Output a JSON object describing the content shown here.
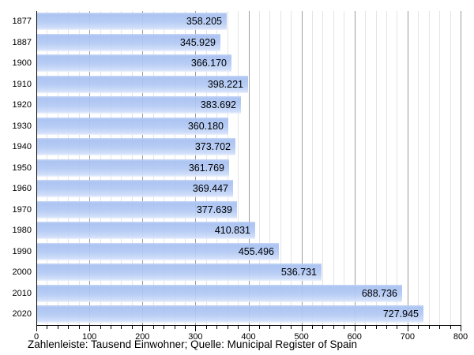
{
  "chart_data": {
    "type": "bar",
    "orientation": "horizontal",
    "categories": [
      "1877",
      "1887",
      "1900",
      "1910",
      "1920",
      "1930",
      "1940",
      "1950",
      "1960",
      "1970",
      "1980",
      "1990",
      "2000",
      "2010",
      "2020"
    ],
    "values": [
      358.205,
      345.929,
      366.17,
      398.221,
      383.692,
      360.18,
      373.702,
      361.769,
      369.447,
      377.639,
      410.831,
      455.496,
      536.731,
      688.736,
      727.945
    ],
    "value_labels": [
      "358.205",
      "345.929",
      "366.170",
      "398.221",
      "383.692",
      "360.180",
      "373.702",
      "361.769",
      "369.447",
      "377.639",
      "410.831",
      "455.496",
      "536.731",
      "688.736",
      "727.945"
    ],
    "title": "",
    "xlabel": "",
    "ylabel": "",
    "xlim": [
      0,
      800
    ],
    "x_major_ticks": [
      0,
      100,
      200,
      300,
      400,
      500,
      600,
      700,
      800
    ],
    "x_minor_step": 20,
    "grid": true,
    "legend": false,
    "caption": "Zahlenleiste: Tausend Einwohner; Quelle: Municipal Register of Spain",
    "colors": {
      "bar_top": "#c2d3f7",
      "bar_upper": "#a6c0f1",
      "bar_body": "#b3caf4",
      "bar_fade": "#cddcf9",
      "bar_bottom": "#ecf1fd",
      "grid_major": "#9c9c9c",
      "grid_minor": "#e4e4e4",
      "axis": "#000000",
      "text": "#000000"
    }
  }
}
